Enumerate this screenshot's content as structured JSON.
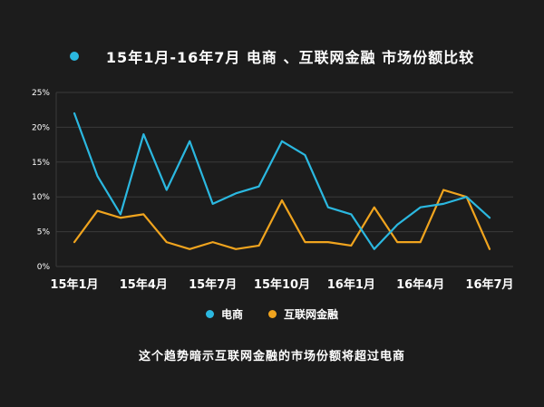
{
  "title": "15年1月-16年7月 电商 、互联网金融 市场份额比较",
  "title_bullet_color": "#2bb8e0",
  "caption": "这个趋势暗示互联网金融的市场份额将超过电商",
  "colors": {
    "background": "#1c1c1c",
    "grid": "#3a3a3a",
    "text": "#ffffff",
    "ecommerce": "#2bb8e0",
    "internet_finance": "#f0a41e"
  },
  "legend": [
    {
      "label": "电商",
      "color": "#2bb8e0"
    },
    {
      "label": "互联网金融",
      "color": "#f0a41e"
    }
  ],
  "chart_data": {
    "type": "line",
    "title": "15年1月-16年7月 电商 、互联网金融 市场份额比较",
    "xlabel": "",
    "ylabel": "",
    "ylim": [
      0,
      25
    ],
    "grid": true,
    "legend_position": "bottom",
    "y_ticks": [
      0,
      5,
      10,
      15,
      20,
      25
    ],
    "y_tick_labels": [
      "0%",
      "5%",
      "10%",
      "15%",
      "20%",
      "25%"
    ],
    "x_tick_positions": [
      0,
      3,
      6,
      9,
      12,
      15,
      18
    ],
    "x_tick_labels": [
      "15年1月",
      "15年4月",
      "15年7月",
      "15年10月",
      "16年1月",
      "16年4月",
      "16年7月"
    ],
    "series": [
      {
        "name": "电商",
        "color": "#2bb8e0",
        "values": [
          22,
          13,
          7.5,
          19,
          11,
          18,
          9,
          10.5,
          11.5,
          18,
          16,
          8.5,
          7.5,
          2.5,
          6,
          8.5,
          9,
          10,
          7
        ]
      },
      {
        "name": "互联网金融",
        "color": "#f0a41e",
        "values": [
          3.5,
          8,
          7,
          7.5,
          3.5,
          2.5,
          3.5,
          2.5,
          3,
          9.5,
          3.5,
          3.5,
          3,
          8.5,
          3.5,
          3.5,
          11,
          10,
          2.5
        ]
      }
    ]
  }
}
